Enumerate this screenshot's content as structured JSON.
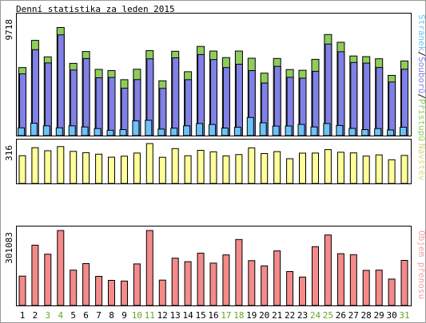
{
  "chart_data": {
    "type": "bar",
    "title": "Denní statistika za leden 2015",
    "days": [
      "1",
      "2",
      "3",
      "4",
      "5",
      "6",
      "7",
      "8",
      "9",
      "10",
      "11",
      "12",
      "13",
      "14",
      "15",
      "16",
      "17",
      "18",
      "19",
      "20",
      "21",
      "22",
      "23",
      "24",
      "25",
      "26",
      "27",
      "28",
      "29",
      "30",
      "31"
    ],
    "weekend_days": [
      "3",
      "4",
      "10",
      "11",
      "17",
      "18",
      "24",
      "25",
      "31"
    ],
    "colors": {
      "hits": "#8fcd5a",
      "files": "#8080e6",
      "pages": "#6cc3f5",
      "visits": "#ffff99",
      "volume": "#f48a8a",
      "weekend_label": "#6aa523",
      "weekday_label": "#000000",
      "visits_label": "#d8d880",
      "volume_label": "#f3a0a0"
    },
    "panels": [
      {
        "id": "top",
        "ymax_label": "9718",
        "legend": [
          {
            "text": "Stránek",
            "color": "#6cc3f5"
          },
          {
            "text": "/",
            "color": "#000000"
          },
          {
            "text": "Souborů",
            "color": "#8080e6"
          },
          {
            "text": "/",
            "color": "#000000"
          },
          {
            "text": "Přístupů",
            "color": "#8fcd5a"
          }
        ],
        "ylim": [
          0,
          9718
        ],
        "series": [
          {
            "name": "Přístupů",
            "values": [
              5600,
              7840,
              6480,
              8900,
              5950,
              6920,
              5450,
              5350,
              4600,
              5460,
              6990,
              4510,
              6940,
              5260,
              7340,
              6960,
              6420,
              6960,
              6370,
              5140,
              6350,
              5440,
              5380,
              6280,
              8320,
              7680,
              6550,
              6500,
              6320,
              4960,
              6140
            ]
          },
          {
            "name": "Souborů",
            "values": [
              5080,
              7070,
              5980,
              8290,
              5400,
              6340,
              4760,
              4790,
              3900,
              4610,
              6320,
              3890,
              6400,
              4600,
              6670,
              6260,
              5600,
              5880,
              5350,
              4330,
              5700,
              4800,
              4730,
              5290,
              7540,
              6900,
              6020,
              5970,
              5610,
              4410,
              5460
            ]
          },
          {
            "name": "Stránek",
            "values": [
              640,
              1020,
              800,
              640,
              800,
              710,
              580,
              440,
              490,
              1210,
              1260,
              530,
              610,
              800,
              990,
              910,
              620,
              680,
              1490,
              1050,
              780,
              790,
              920,
              710,
              990,
              830,
              590,
              490,
              580,
              460,
              690
            ]
          }
        ]
      },
      {
        "id": "middle",
        "ymax_label": "316",
        "legend": [
          {
            "text": "Návštěv",
            "color": "#d8d880"
          }
        ],
        "ylim": [
          0,
          316
        ],
        "series": [
          {
            "name": "Návštěv",
            "values": [
              220,
              283,
              259,
              292,
              254,
              244,
              232,
              208,
              216,
              241,
              316,
              207,
              276,
              219,
              262,
              251,
              218,
              229,
              282,
              237,
              252,
              196,
              240,
              241,
              268,
              247,
              242,
              217,
              226,
              188,
              222
            ]
          }
        ]
      },
      {
        "id": "bottom",
        "ymax_label": "301083",
        "legend": [
          {
            "text": "Objem přenosu",
            "color": "#f3a0a0"
          }
        ],
        "ylim": [
          0,
          301083
        ],
        "series": [
          {
            "name": "Objem přenosu",
            "values": [
              118000,
              242000,
              206000,
              301000,
              142000,
              168000,
              117000,
              101000,
              98000,
              167000,
              301000,
              102000,
              190000,
              176000,
              210000,
              170000,
              203000,
              265000,
              180000,
              159000,
              219000,
              136000,
              114000,
              236000,
              283000,
              208000,
              204000,
              141000,
              142000,
              106000,
              181000
            ]
          }
        ]
      }
    ]
  }
}
